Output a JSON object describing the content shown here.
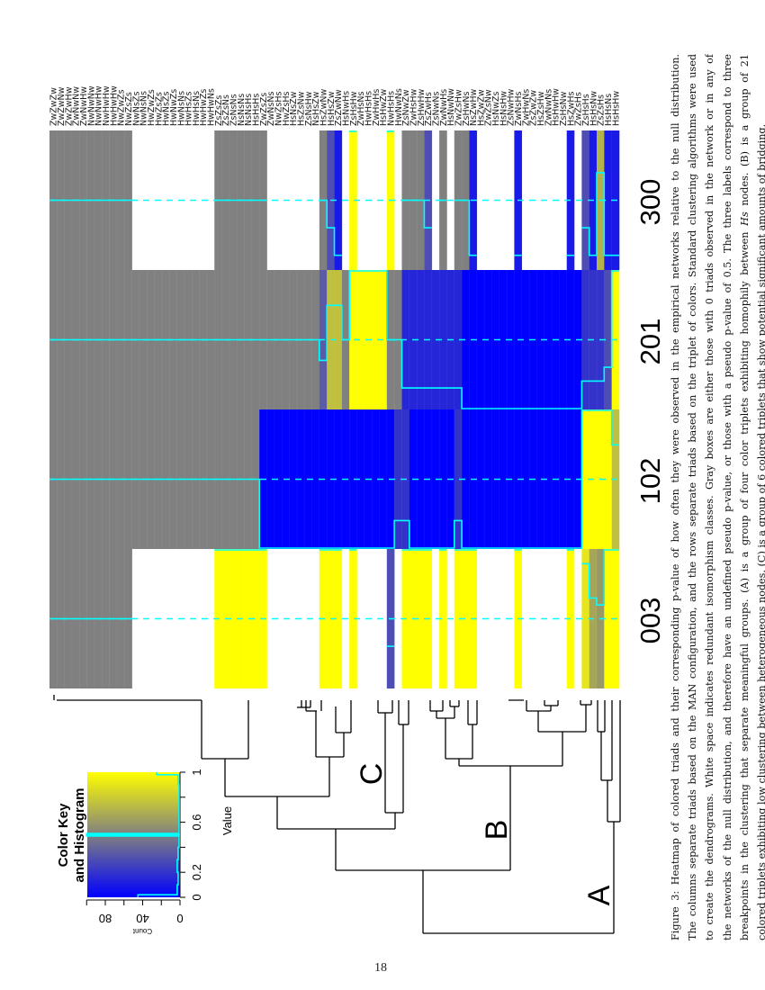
{
  "page_number": "18",
  "caption": {
    "line1": "Figure 3: Heatmap of colored triads and their corresponding p-value of how often they were observed in the empirical networks relative to the null distribution.",
    "line2": "The columns separate triads based on the MAN configuration, and the rows separate triads based on the triplet of colors. Standard clustering algorithms were used",
    "line3": "to create the dendrograms. White space indicates redundant isomorphism classes. Gray boxes are either those with 0 triads observed in the network or in any of",
    "line4": "the networks of the null distribution, and therefore have an undefined pseudo p-value, or those with a pseudo p-value of 0.5. The three labels correspond to three",
    "line5_pre": "breakpoints in the clustering that separate meaningful groups. (A) is a group of four color triplets exhibiting homophily between ",
    "line5_italic": "Hs",
    "line5_post": " nodes. (B) is a group of 21",
    "line6": "colored triplets exhibiting low clustering between heterogeneous nodes. (C) is a group of 6 colored triplets that show potential significant amounts of bridging."
  },
  "color_key": {
    "title_line1": "Color Key",
    "title_line2": "and Histogram",
    "value_label": "Value",
    "count_label": "Count",
    "value_ticks": [
      "0",
      "0.2",
      "0.6",
      "1"
    ],
    "count_ticks": [
      "0",
      "40",
      "80"
    ],
    "low_color": "#0000FF",
    "mid_color": "#808080",
    "high_color": "#FFFF00",
    "trace_color": "#00FFFF"
  },
  "dendrogram_labels": [
    "A",
    "B",
    "C"
  ],
  "chart_data": {
    "type": "heatmap",
    "columns": [
      "003",
      "102",
      "201",
      "300"
    ],
    "na_color": "#808080",
    "row_labels": [
      "ZwZwZw",
      "ZwZwNw",
      "ZwZwHw",
      "ZwNwNw",
      "ZwNwHw",
      "NwNwNw",
      "NwNwHw",
      "NwHwHw",
      "HwHwHw",
      "NwZwZs",
      "NwZsZs",
      "NwNsZs",
      "NwNsNs",
      "HwZwZs",
      "HwZsZs",
      "HwNsZs",
      "HwNwZs",
      "HwNsNs",
      "HwHsZs",
      "HwHsNs",
      "HwHwZs",
      "HwHwNs",
      "ZsZsZs",
      "ZsZsNs",
      "ZsNsNs",
      "NsNsNs",
      "NsNsHs",
      "HsHsHs",
      "ZwZsZs",
      "ZwNsNs",
      "NwZsHs",
      "HwZsHs",
      "HsNsZw",
      "HsZsNw",
      "ZsNsHw",
      "NsHsZw",
      "HsZwNw",
      "HsHsZw",
      "ZsZwNw",
      "HsNwHs",
      "ZsHsHw",
      "ZwHsNs",
      "HwHsHs",
      "ZwHwHs",
      "HsHwZw",
      "NwHsHs",
      "HwNwNs",
      "ZsNwZw",
      "ZwHsHw",
      "ZsHwHw",
      "ZsZwHs",
      "ZsNwNs",
      "ZwNwHs",
      "HsNwNw",
      "ZwZsHw",
      "ZsHwNs",
      "NsZwHw",
      "HsZwZw",
      "ZwZsNw",
      "HsNwZs",
      "HsNsHw",
      "ZsNwHw",
      "ZwNsHs",
      "ZwHwNs",
      "ZsZwZw",
      "HsZsHw",
      "ZwNwNs",
      "HsHwHw",
      "ZsHsNw",
      "HsZwHs",
      "ZwZsHs",
      "ZsHsHs",
      "HsHsNw",
      "ZsZsHs",
      "HsHsNs",
      "HsHsHw"
    ],
    "values": [
      [
        "NA",
        "NA",
        "NA",
        "NA"
      ],
      [
        "NA",
        "NA",
        "NA",
        "NA"
      ],
      [
        "NA",
        "NA",
        "NA",
        "NA"
      ],
      [
        "NA",
        "NA",
        "NA",
        "NA"
      ],
      [
        "NA",
        "NA",
        "NA",
        "NA"
      ],
      [
        "NA",
        "NA",
        "NA",
        "NA"
      ],
      [
        "NA",
        "NA",
        "NA",
        "NA"
      ],
      [
        "NA",
        "NA",
        "NA",
        "NA"
      ],
      [
        "NA",
        "NA",
        "NA",
        "NA"
      ],
      [
        "NA",
        "NA",
        "NA",
        "NA"
      ],
      [
        "NA",
        "NA",
        "NA",
        "NA"
      ],
      [
        null,
        "NA",
        "NA",
        null
      ],
      [
        null,
        "NA",
        "NA",
        null
      ],
      [
        null,
        "NA",
        "NA",
        null
      ],
      [
        null,
        "NA",
        "NA",
        null
      ],
      [
        null,
        "NA",
        "NA",
        null
      ],
      [
        null,
        "NA",
        "NA",
        null
      ],
      [
        null,
        "NA",
        "NA",
        null
      ],
      [
        null,
        "NA",
        "NA",
        null
      ],
      [
        null,
        "NA",
        "NA",
        null
      ],
      [
        null,
        "NA",
        "NA",
        null
      ],
      [
        null,
        "NA",
        "NA",
        null
      ],
      [
        1,
        "NA",
        "NA",
        "NA"
      ],
      [
        1,
        "NA",
        "NA",
        "NA"
      ],
      [
        1,
        "NA",
        "NA",
        "NA"
      ],
      [
        1,
        "NA",
        "NA",
        "NA"
      ],
      [
        1,
        "NA",
        "NA",
        "NA"
      ],
      [
        1,
        "NA",
        "NA",
        "NA"
      ],
      [
        1,
        0,
        "NA",
        "NA"
      ],
      [
        null,
        0,
        "NA",
        null
      ],
      [
        null,
        0,
        "NA",
        null
      ],
      [
        null,
        0,
        "NA",
        null
      ],
      [
        null,
        0,
        "NA",
        null
      ],
      [
        null,
        0,
        "NA",
        null
      ],
      [
        null,
        0,
        "NA",
        null
      ],
      [
        null,
        0,
        "NA",
        null
      ],
      [
        1,
        0,
        0.35,
        "NA"
      ],
      [
        1,
        0,
        0.75,
        0.3
      ],
      [
        1,
        0,
        0.75,
        0.1
      ],
      [
        null,
        0,
        "NA",
        null
      ],
      [
        1,
        0,
        1,
        1
      ],
      [
        null,
        0,
        1,
        null
      ],
      [
        null,
        0,
        1,
        null
      ],
      [
        null,
        0,
        1,
        null
      ],
      [
        null,
        0,
        1,
        null
      ],
      [
        0.3,
        0,
        "NA",
        1
      ],
      [
        null,
        0.2,
        "NA",
        null
      ],
      [
        1,
        0.2,
        0.15,
        "NA"
      ],
      [
        1,
        0,
        0.15,
        "NA"
      ],
      [
        1,
        0,
        0.15,
        "NA"
      ],
      [
        1,
        0,
        0.15,
        0.3
      ],
      [
        null,
        0,
        0.15,
        null
      ],
      [
        1,
        0,
        0.15,
        "NA"
      ],
      [
        null,
        0,
        0.15,
        null
      ],
      [
        1,
        0.2,
        0.15,
        "NA"
      ],
      [
        1,
        0,
        0,
        "NA"
      ],
      [
        1,
        0,
        0,
        0.1
      ],
      [
        null,
        0,
        0,
        null
      ],
      [
        null,
        0,
        0,
        null
      ],
      [
        null,
        0,
        0,
        null
      ],
      [
        null,
        0,
        0,
        null
      ],
      [
        null,
        0,
        0,
        null
      ],
      [
        1,
        0,
        0,
        0.1
      ],
      [
        null,
        0,
        0,
        null
      ],
      [
        null,
        0,
        0,
        null
      ],
      [
        null,
        0,
        0,
        null
      ],
      [
        null,
        0,
        0,
        null
      ],
      [
        null,
        0,
        0,
        null
      ],
      [
        null,
        0,
        0,
        null
      ],
      [
        1,
        0,
        0,
        0.1
      ],
      [
        null,
        0,
        0,
        null
      ],
      [
        0.9,
        1,
        0.2,
        0.3
      ],
      [
        0.65,
        1,
        0.2,
        0.1
      ],
      [
        0.6,
        1,
        0.2,
        0.7
      ],
      [
        1,
        1,
        0.3,
        0.1
      ],
      [
        1,
        0.75,
        1,
        0.1
      ]
    ],
    "scale_range": [
      0,
      1
    ]
  }
}
